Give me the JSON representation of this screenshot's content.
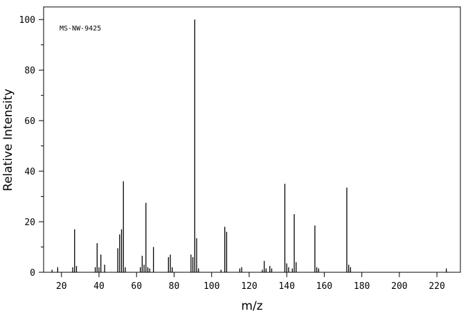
{
  "chart_data": {
    "type": "stem",
    "annotation": "MS-NW-9425",
    "xlabel": "m/z",
    "ylabel": "Relative Intensity",
    "x": [
      15,
      18,
      26,
      27,
      28,
      38,
      39,
      40,
      41,
      43,
      50,
      51,
      52,
      53,
      54,
      62,
      63,
      64,
      65,
      66,
      67,
      69,
      77,
      78,
      79,
      89,
      90,
      91,
      92,
      93,
      105,
      107,
      108,
      115,
      116,
      127,
      128,
      129,
      131,
      132,
      139,
      140,
      141,
      143,
      144,
      145,
      155,
      156,
      157,
      172,
      173,
      174,
      225
    ],
    "values": [
      1,
      2,
      2,
      17,
      2.5,
      2,
      11.5,
      2,
      7,
      3,
      9.5,
      15,
      17,
      36,
      2,
      2,
      6.5,
      3,
      27.5,
      2,
      1.5,
      10,
      6,
      7,
      2,
      7,
      6,
      100,
      13.5,
      1.5,
      1,
      18,
      16,
      1.5,
      2,
      1,
      4.5,
      1.5,
      2.5,
      1.5,
      35,
      3.5,
      2,
      1.5,
      23,
      4,
      18.5,
      2,
      1.5,
      33.5,
      3,
      2,
      1.5
    ],
    "color": "#000000",
    "xlim": [
      10.5,
      232.5
    ],
    "ylim": [
      0,
      105
    ],
    "xticks": [
      20,
      40,
      60,
      80,
      100,
      120,
      140,
      160,
      180,
      200,
      220
    ],
    "yticks": [
      0,
      20,
      40,
      60,
      80,
      100
    ],
    "yminorticks": [
      10,
      30,
      50,
      70,
      90
    ]
  }
}
